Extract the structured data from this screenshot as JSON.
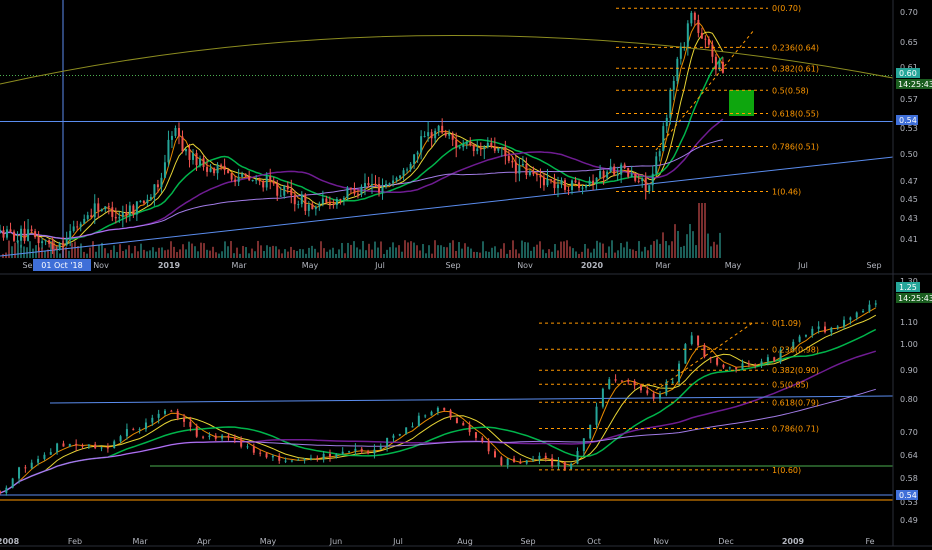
{
  "chart_data": [
    {
      "type": "candlestick",
      "x_ticks": [
        "Sep",
        "01 Oct '18",
        "Nov",
        "2019",
        "Mar",
        "May",
        "Jul",
        "Sep",
        "Nov",
        "2020",
        "Mar",
        "May",
        "Jul",
        "Sep"
      ],
      "cursor_date": "01 Oct '18",
      "y_ticks": [
        "0.70",
        "0.65",
        "0.61",
        "0.60",
        "0.57",
        "0.54",
        "0.53",
        "0.50",
        "0.47",
        "0.45",
        "0.43",
        "0.41"
      ],
      "ylim": [
        0.395,
        0.71
      ],
      "log_scale": true,
      "price_tag": {
        "value": "0.60",
        "countdown": "14:25:43"
      },
      "level_tag": "0.54",
      "fib_levels": [
        {
          "label": "0(0.70)",
          "value": 0.7
        },
        {
          "label": "0.236(0.64)",
          "value": 0.64
        },
        {
          "label": "0.382(0.61)",
          "value": 0.61
        },
        {
          "label": "0.5(0.58)",
          "value": 0.58
        },
        {
          "label": "0.618(0.55)",
          "value": 0.55
        },
        {
          "label": "0.786(0.51)",
          "value": 0.51
        },
        {
          "label": "1(0.46)",
          "value": 0.46
        }
      ],
      "close_path": [
        [
          "2018-08-15",
          0.418
        ],
        [
          "2018-09-15",
          0.413
        ],
        [
          "2018-10-01",
          0.405
        ],
        [
          "2018-10-20",
          0.425
        ],
        [
          "2018-11-05",
          0.445
        ],
        [
          "2018-11-25",
          0.436
        ],
        [
          "2018-12-10",
          0.447
        ],
        [
          "2018-12-28",
          0.462
        ],
        [
          "2019-01-10",
          0.534
        ],
        [
          "2019-01-20",
          0.505
        ],
        [
          "2019-02-05",
          0.488
        ],
        [
          "2019-02-25",
          0.482
        ],
        [
          "2019-03-15",
          0.472
        ],
        [
          "2019-04-05",
          0.467
        ],
        [
          "2019-04-25",
          0.452
        ],
        [
          "2019-05-10",
          0.442
        ],
        [
          "2019-05-30",
          0.452
        ],
        [
          "2019-06-20",
          0.468
        ],
        [
          "2019-07-05",
          0.465
        ],
        [
          "2019-07-25",
          0.478
        ],
        [
          "2019-08-10",
          0.516
        ],
        [
          "2019-08-25",
          0.532
        ],
        [
          "2019-09-10",
          0.513
        ],
        [
          "2019-09-25",
          0.504
        ],
        [
          "2019-10-10",
          0.512
        ],
        [
          "2019-10-25",
          0.491
        ],
        [
          "2019-11-10",
          0.479
        ],
        [
          "2019-11-25",
          0.472
        ],
        [
          "2019-12-10",
          0.466
        ],
        [
          "2019-12-25",
          0.47
        ],
        [
          "2020-01-10",
          0.478
        ],
        [
          "2020-01-25",
          0.487
        ],
        [
          "2020-02-10",
          0.472
        ],
        [
          "2020-02-22",
          0.466
        ],
        [
          "2020-03-01",
          0.505
        ],
        [
          "2020-03-08",
          0.56
        ],
        [
          "2020-03-15",
          0.615
        ],
        [
          "2020-03-22",
          0.65
        ],
        [
          "2020-03-28",
          0.697
        ],
        [
          "2020-04-05",
          0.65
        ],
        [
          "2020-04-12",
          0.64
        ],
        [
          "2020-04-20",
          0.612
        ],
        [
          "2020-04-26",
          0.605
        ]
      ]
    },
    {
      "type": "candlestick",
      "x_ticks": [
        "2008",
        "Feb",
        "Mar",
        "Apr",
        "May",
        "Jun",
        "Jul",
        "Aug",
        "Sep",
        "Oct",
        "Nov",
        "Dec",
        "2009",
        "Fe"
      ],
      "cursor_date": "01 Oct '18",
      "y_ticks": [
        "1.30",
        "1.25",
        "1.10",
        "1.00",
        "0.90",
        "0.80",
        "0.70",
        "0.64",
        "0.58",
        "0.54",
        "0.53",
        "0.49"
      ],
      "ylim": [
        0.47,
        1.32
      ],
      "log_scale": true,
      "price_tag": {
        "value": "1.25",
        "countdown": "14:25:43"
      },
      "level_tag": "0.54",
      "fib_levels": [
        {
          "label": "0(1.09)",
          "value": 1.09
        },
        {
          "label": "0.236(0.98)",
          "value": 0.98
        },
        {
          "label": "0.382(0.90)",
          "value": 0.9
        },
        {
          "label": "0.5(0.85)",
          "value": 0.85
        },
        {
          "label": "0.618(0.79)",
          "value": 0.79
        },
        {
          "label": "0.786(0.71)",
          "value": 0.71
        },
        {
          "label": "1(0.60)",
          "value": 0.6
        }
      ],
      "close_path": [
        [
          "2008-01-01",
          0.55
        ],
        [
          "2008-01-15",
          0.62
        ],
        [
          "2008-02-01",
          0.67
        ],
        [
          "2008-02-20",
          0.66
        ],
        [
          "2008-03-05",
          0.71
        ],
        [
          "2008-03-20",
          0.76
        ],
        [
          "2008-04-01",
          0.7
        ],
        [
          "2008-04-20",
          0.68
        ],
        [
          "2008-05-05",
          0.63
        ],
        [
          "2008-05-25",
          0.62
        ],
        [
          "2008-06-10",
          0.64
        ],
        [
          "2008-06-25",
          0.65
        ],
        [
          "2008-07-10",
          0.7
        ],
        [
          "2008-07-25",
          0.78
        ],
        [
          "2008-08-10",
          0.7
        ],
        [
          "2008-08-25",
          0.62
        ],
        [
          "2008-09-10",
          0.63
        ],
        [
          "2008-09-25",
          0.6
        ],
        [
          "2008-10-05",
          0.7
        ],
        [
          "2008-10-15",
          0.88
        ],
        [
          "2008-10-25",
          0.85
        ],
        [
          "2008-11-05",
          0.8
        ],
        [
          "2008-11-15",
          0.88
        ],
        [
          "2008-11-22",
          1.05
        ],
        [
          "2008-11-28",
          0.95
        ],
        [
          "2008-12-08",
          0.9
        ],
        [
          "2008-12-20",
          0.93
        ],
        [
          "2009-01-01",
          0.95
        ],
        [
          "2009-01-15",
          1.05
        ],
        [
          "2009-02-01",
          1.08
        ],
        [
          "2009-02-20",
          1.2
        ]
      ]
    }
  ]
}
